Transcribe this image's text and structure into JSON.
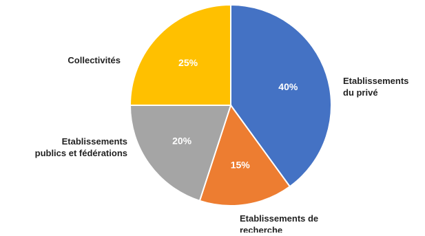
{
  "chart_data": {
    "type": "pie",
    "title": "",
    "start_angle_deg": 0,
    "direction": "clockwise",
    "legend": "none",
    "slices": [
      {
        "label": "Etablissements du privé",
        "value": 40,
        "value_label": "40%",
        "color": "#4472C4"
      },
      {
        "label": "Etablissements de recherche",
        "value": 15,
        "value_label": "15%",
        "color": "#ED7D31"
      },
      {
        "label": "Etablissements publics et fédérations",
        "value": 20,
        "value_label": "20%",
        "color": "#A5A5A5"
      },
      {
        "label": "Collectivités",
        "value": 25,
        "value_label": "25%",
        "color": "#FFC000"
      }
    ]
  }
}
